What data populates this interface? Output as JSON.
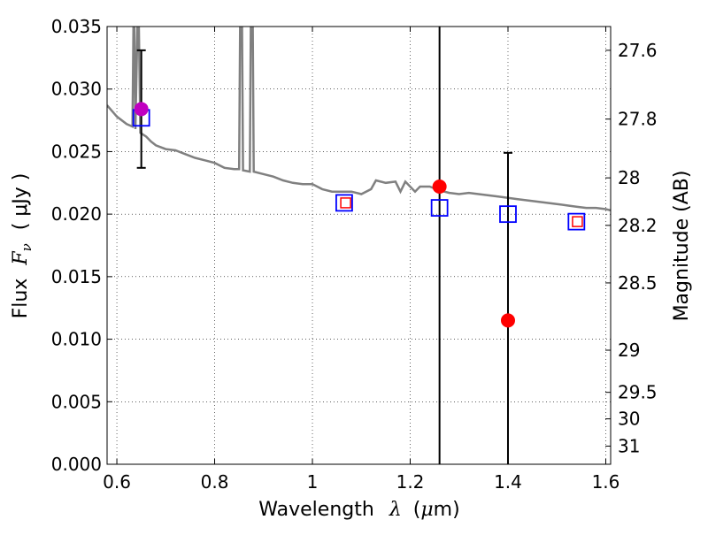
{
  "chart_data": {
    "type": "scatter",
    "xlabel_main": "Wavelength",
    "xlabel_symbol": "λ",
    "xlabel_unit_open": "(",
    "xlabel_unit_mu": "μ",
    "xlabel_unit_rest": "m)",
    "ylabel_main": "Flux",
    "ylabel_symbol": "F",
    "ylabel_sub": "ν",
    "ylabel_unit": "( μJy )",
    "y2label": "Magnitude (AB)",
    "xlim": [
      0.58,
      1.61
    ],
    "ylim": [
      0.0,
      0.035
    ],
    "grid": true,
    "x_ticks": [
      {
        "value": 0.6,
        "label": "0.6"
      },
      {
        "value": 0.8,
        "label": "0.8"
      },
      {
        "value": 1.0,
        "label": "1"
      },
      {
        "value": 1.2,
        "label": "1.2"
      },
      {
        "value": 1.4,
        "label": "1.4"
      },
      {
        "value": 1.6,
        "label": "1.6"
      }
    ],
    "y_ticks": [
      {
        "value": 0.0,
        "label": "0.000"
      },
      {
        "value": 0.005,
        "label": "0.005"
      },
      {
        "value": 0.01,
        "label": "0.010"
      },
      {
        "value": 0.015,
        "label": "0.015"
      },
      {
        "value": 0.02,
        "label": "0.020"
      },
      {
        "value": 0.025,
        "label": "0.025"
      },
      {
        "value": 0.03,
        "label": "0.030"
      },
      {
        "value": 0.035,
        "label": "0.035"
      }
    ],
    "y2_ticks": [
      {
        "flux": 0.0331,
        "label": "27.6"
      },
      {
        "flux": 0.0276,
        "label": "27.8"
      },
      {
        "flux": 0.0229,
        "label": "28"
      },
      {
        "flux": 0.0191,
        "label": "28.2"
      },
      {
        "flux": 0.0145,
        "label": "28.5"
      },
      {
        "flux": 0.00912,
        "label": "29"
      },
      {
        "flux": 0.00575,
        "label": "29.5"
      },
      {
        "flux": 0.00363,
        "label": "30"
      },
      {
        "flux": 0.00145,
        "label": "31"
      }
    ],
    "model_spectrum": {
      "color": "#808080",
      "points": [
        [
          0.58,
          0.0287
        ],
        [
          0.6,
          0.0278
        ],
        [
          0.62,
          0.0272
        ],
        [
          0.632,
          0.027
        ],
        [
          0.634,
          0.035
        ],
        [
          0.636,
          0.035
        ],
        [
          0.638,
          0.0268
        ],
        [
          0.642,
          0.035
        ],
        [
          0.645,
          0.035
        ],
        [
          0.648,
          0.0265
        ],
        [
          0.66,
          0.0262
        ],
        [
          0.67,
          0.0258
        ],
        [
          0.68,
          0.0255
        ],
        [
          0.7,
          0.0252
        ],
        [
          0.72,
          0.0251
        ],
        [
          0.74,
          0.0248
        ],
        [
          0.76,
          0.0245
        ],
        [
          0.78,
          0.0243
        ],
        [
          0.8,
          0.0241
        ],
        [
          0.82,
          0.0237
        ],
        [
          0.84,
          0.0236
        ],
        [
          0.85,
          0.0236
        ],
        [
          0.852,
          0.035
        ],
        [
          0.856,
          0.035
        ],
        [
          0.858,
          0.0235
        ],
        [
          0.872,
          0.0234
        ],
        [
          0.874,
          0.035
        ],
        [
          0.878,
          0.035
        ],
        [
          0.88,
          0.0234
        ],
        [
          0.9,
          0.0232
        ],
        [
          0.92,
          0.023
        ],
        [
          0.94,
          0.0227
        ],
        [
          0.96,
          0.0225
        ],
        [
          0.98,
          0.0224
        ],
        [
          1.0,
          0.0224
        ],
        [
          1.02,
          0.022
        ],
        [
          1.04,
          0.0218
        ],
        [
          1.06,
          0.0218
        ],
        [
          1.08,
          0.0218
        ],
        [
          1.1,
          0.0216
        ],
        [
          1.12,
          0.022
        ],
        [
          1.13,
          0.0227
        ],
        [
          1.15,
          0.0225
        ],
        [
          1.17,
          0.0226
        ],
        [
          1.18,
          0.0218
        ],
        [
          1.19,
          0.0226
        ],
        [
          1.21,
          0.0218
        ],
        [
          1.22,
          0.0222
        ],
        [
          1.24,
          0.0222
        ],
        [
          1.26,
          0.0219
        ],
        [
          1.28,
          0.0217
        ],
        [
          1.3,
          0.0216
        ],
        [
          1.32,
          0.0217
        ],
        [
          1.34,
          0.0216
        ],
        [
          1.36,
          0.0215
        ],
        [
          1.38,
          0.0214
        ],
        [
          1.4,
          0.0213
        ],
        [
          1.42,
          0.0212
        ],
        [
          1.44,
          0.0211
        ],
        [
          1.46,
          0.021
        ],
        [
          1.48,
          0.0209
        ],
        [
          1.5,
          0.0208
        ],
        [
          1.52,
          0.0207
        ],
        [
          1.54,
          0.0206
        ],
        [
          1.56,
          0.0205
        ],
        [
          1.58,
          0.0205
        ],
        [
          1.6,
          0.0204
        ],
        [
          1.61,
          0.0203
        ]
      ]
    },
    "blue_squares": {
      "color": "#0000ff",
      "points": [
        [
          0.65,
          0.0277
        ],
        [
          1.065,
          0.0209
        ],
        [
          1.26,
          0.0205
        ],
        [
          1.4,
          0.02
        ],
        [
          1.54,
          0.0194
        ]
      ]
    },
    "red_squares": {
      "color": "#ff0000",
      "points": [
        [
          1.068,
          0.0209
        ],
        [
          1.542,
          0.0194
        ]
      ]
    },
    "observed_points": [
      {
        "x": 0.65,
        "y": 0.0284,
        "color": "#c000c0",
        "err_low": 0.0237,
        "err_high": 0.0331
      },
      {
        "x": 1.26,
        "y": 0.0222,
        "color": "#ff0000",
        "err_low": 0.0,
        "err_high": 0.035
      },
      {
        "x": 1.4,
        "y": 0.0115,
        "color": "#ff0000",
        "err_low": 0.0,
        "err_high": 0.0249
      }
    ]
  }
}
